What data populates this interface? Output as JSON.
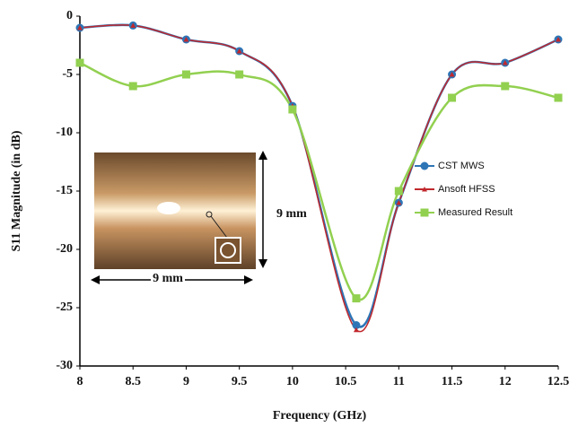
{
  "chart_data": {
    "type": "line",
    "x_label": "Frequency (GHz)",
    "y_label": "S11 Magnitude (in dB)",
    "x": [
      8,
      8.5,
      9,
      9.5,
      10,
      10.6,
      11,
      11.5,
      12,
      12.5
    ],
    "series": [
      {
        "name": "CST MWS",
        "color": "#2e75b6",
        "marker": "circle",
        "values": [
          -1,
          -0.8,
          -2,
          -3,
          -7.7,
          -26.5,
          -16,
          -5,
          -4,
          -2
        ]
      },
      {
        "name": "Ansoft HFSS",
        "color": "#c0282d",
        "marker": "triangle",
        "values": [
          -1,
          -0.8,
          -2,
          -3,
          -7.7,
          -26.9,
          -16,
          -5,
          -4,
          -2
        ]
      },
      {
        "name": "Measured Result",
        "color": "#92d050",
        "marker": "square",
        "values": [
          -4,
          -6,
          -5,
          -5,
          -8,
          -24.2,
          -15,
          -7,
          -6,
          -7
        ]
      }
    ],
    "xlim": [
      8,
      12.5
    ],
    "xticks": [
      8,
      8.5,
      9,
      9.5,
      10,
      10.5,
      11,
      11.5,
      12,
      12.5
    ],
    "ylim": [
      -30,
      0
    ],
    "yticks": [
      0,
      -5,
      -10,
      -15,
      -20,
      -25,
      -30
    ],
    "annotations": [
      "9 mm",
      "9 mm"
    ]
  }
}
